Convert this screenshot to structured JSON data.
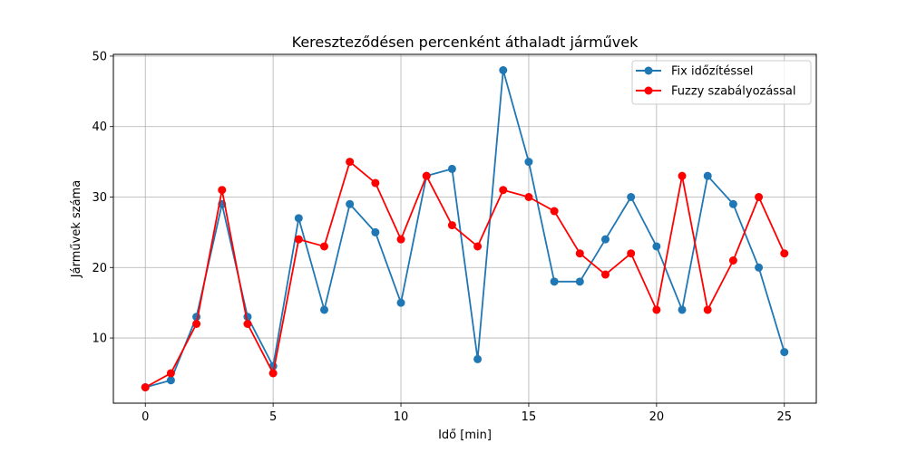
{
  "chart_data": {
    "type": "line",
    "title": "Kereszteződésen percenként áthaladt járművek",
    "xlabel": "Idő [min]",
    "ylabel": "Járművek száma",
    "xlim": [
      -1.25,
      26.25
    ],
    "ylim": [
      0.75,
      50.25
    ],
    "xticks": [
      0,
      5,
      10,
      15,
      20,
      25
    ],
    "yticks": [
      10,
      20,
      30,
      40,
      50
    ],
    "grid": true,
    "legend_position": "top-right",
    "x": [
      0,
      1,
      2,
      3,
      4,
      5,
      6,
      7,
      8,
      9,
      10,
      11,
      12,
      13,
      14,
      15,
      16,
      17,
      18,
      19,
      20,
      21,
      22,
      23,
      24,
      25
    ],
    "series": [
      {
        "name": "Fix időzítéssel",
        "color": "#1f77b4",
        "values": [
          3,
          4,
          13,
          29,
          13,
          6,
          27,
          14,
          29,
          25,
          15,
          33,
          34,
          7,
          48,
          35,
          18,
          18,
          24,
          30,
          23,
          14,
          33,
          29,
          20,
          8
        ]
      },
      {
        "name": "Fuzzy szabályozással",
        "color": "#ff0000",
        "values": [
          3,
          5,
          12,
          31,
          12,
          5,
          24,
          23,
          35,
          32,
          24,
          33,
          26,
          23,
          31,
          30,
          28,
          22,
          19,
          22,
          14,
          33,
          14,
          21,
          30,
          22
        ]
      }
    ]
  }
}
